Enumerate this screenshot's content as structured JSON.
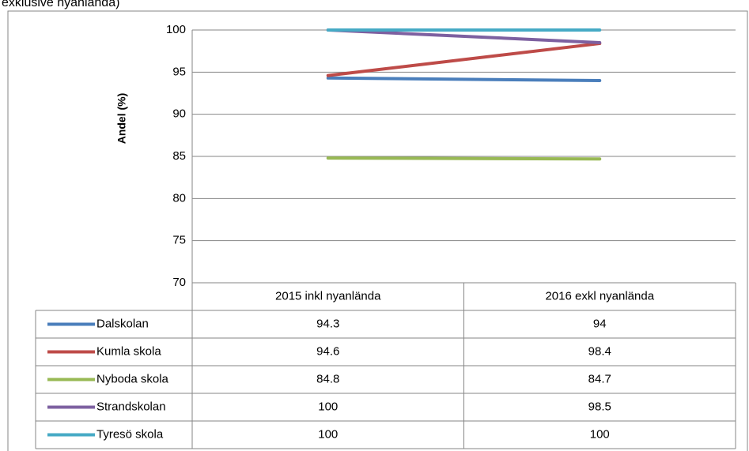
{
  "chart_data": {
    "type": "line",
    "title": "exklusive nyanlända)",
    "y_label": "Andel (%)",
    "categories": [
      "2015 inkl nyanlända",
      "2016 exkl nyanlända"
    ],
    "series": [
      {
        "name": "Dalskolan",
        "color": "#4a7ebb",
        "values": [
          94.3,
          94
        ]
      },
      {
        "name": "Kumla skola",
        "color": "#be4b48",
        "values": [
          94.6,
          98.4
        ]
      },
      {
        "name": "Nyboda skola",
        "color": "#98b954",
        "values": [
          84.8,
          84.7
        ]
      },
      {
        "name": "Strandskolan",
        "color": "#7d60a0",
        "values": [
          100,
          98.5
        ]
      },
      {
        "name": "Tyresö skola",
        "color": "#46aac5",
        "values": [
          100,
          100
        ]
      }
    ],
    "ylim": [
      70,
      100
    ],
    "yticks": [
      70,
      75,
      80,
      85,
      90,
      95,
      100
    ],
    "grid": true,
    "data_table": true
  }
}
